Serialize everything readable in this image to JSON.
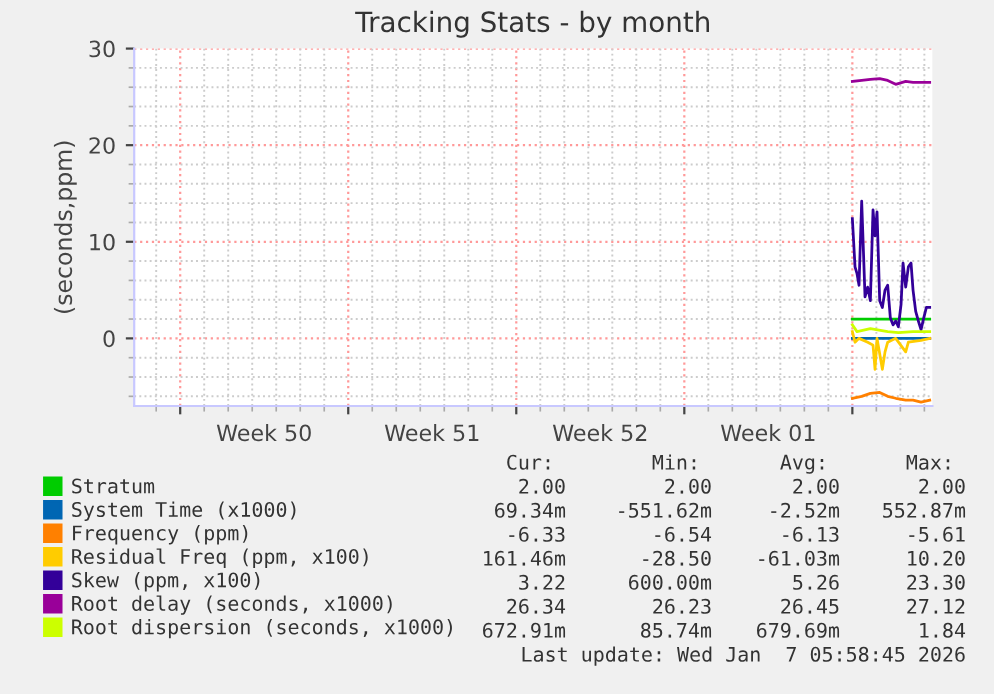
{
  "chart_data": {
    "type": "line",
    "title": "Tracking Stats - by month",
    "ylabel": "(seconds,ppm)",
    "xlim": [
      "2025-12-05T02:00",
      "2026-01-07T08:00"
    ],
    "xticks": [
      {
        "value": "2025-12-07",
        "label": null
      },
      {
        "value": "2025-12-10T12:00",
        "label": "Week 50"
      },
      {
        "value": "2025-12-14",
        "label": null
      },
      {
        "value": "2025-12-17T12:00",
        "label": "Week 51"
      },
      {
        "value": "2025-12-21",
        "label": null
      },
      {
        "value": "2025-12-24T12:00",
        "label": "Week 52"
      },
      {
        "value": "2025-12-28",
        "label": null
      },
      {
        "value": "2025-12-31T12:00",
        "label": "Week 01"
      },
      {
        "value": "2026-01-04",
        "label": null
      }
    ],
    "ylim": [
      -7,
      30
    ],
    "yticks": [
      0,
      10,
      20,
      30
    ],
    "grid": true,
    "legend": "bottom",
    "line_style": "solid",
    "marker": "none",
    "series": [
      {
        "name": "Stratum",
        "color": "#00cc00",
        "x": [
          "2026-01-04T00:00",
          "2026-01-07T05:20"
        ],
        "values": [
          2.0,
          2.0
        ]
      },
      {
        "name": "System Time (x1000)",
        "color": "#0066b3",
        "x": [
          "2026-01-04T00:00",
          "2026-01-07T05:20"
        ],
        "values": [
          0.0,
          0.0
        ]
      },
      {
        "name": "Frequency (ppm)",
        "color": "#ff8000",
        "x": [
          "2026-01-04T00:00",
          "2026-01-04T09:20",
          "2026-01-04T18:00",
          "2026-01-05T03:20",
          "2026-01-05T11:20",
          "2026-01-05T19:20",
          "2026-01-06T05:20",
          "2026-01-06T12:40",
          "2026-01-06T20:40",
          "2026-01-07T05:20"
        ],
        "values": [
          -6.2,
          -6.0,
          -5.7,
          -5.6,
          -6.0,
          -6.2,
          -6.4,
          -6.4,
          -6.6,
          -6.4
        ]
      },
      {
        "name": "Residual Freq (ppm, x100)",
        "color": "#ffcc00",
        "x": [
          "2026-01-04T00:00",
          "2026-01-04T02:40",
          "2026-01-04T06:40",
          "2026-01-04T15:20",
          "2026-01-04T20:40",
          "2026-01-04T22:40",
          "2026-01-05T00:40",
          "2026-01-05T06:00",
          "2026-01-05T08:40",
          "2026-01-05T11:20",
          "2026-01-05T19:20",
          "2026-01-06T05:20",
          "2026-01-06T08:00",
          "2026-01-06T20:40",
          "2026-01-07T05:20"
        ],
        "values": [
          0.7,
          -0.4,
          0.0,
          -0.4,
          -0.7,
          -3.2,
          0.0,
          -3.2,
          -1.4,
          -0.4,
          0.0,
          -1.4,
          -0.4,
          -0.2,
          0.0
        ]
      },
      {
        "name": "Skew (ppm, x100)",
        "color": "#330099",
        "x": [
          "2026-01-04T00:00",
          "2026-01-04T02:40",
          "2026-01-04T04:40",
          "2026-01-04T06:40",
          "2026-01-04T09:20",
          "2026-01-04T12:40",
          "2026-01-04T15:20",
          "2026-01-04T18:00",
          "2026-01-04T20:40",
          "2026-01-04T22:40",
          "2026-01-05T00:40",
          "2026-01-05T03:20",
          "2026-01-05T06:00",
          "2026-01-05T08:40",
          "2026-01-05T11:20",
          "2026-01-05T14:00",
          "2026-01-05T16:40",
          "2026-01-05T19:20",
          "2026-01-05T22:00",
          "2026-01-06T00:40",
          "2026-01-06T02:40",
          "2026-01-06T05:20",
          "2026-01-06T08:00",
          "2026-01-06T10:40",
          "2026-01-06T12:40",
          "2026-01-06T15:20",
          "2026-01-06T18:00",
          "2026-01-06T20:40",
          "2026-01-06T23:20",
          "2026-01-07T02:00",
          "2026-01-07T05:20"
        ],
        "values": [
          12.4,
          7.4,
          6.7,
          5.5,
          14.2,
          4.3,
          5.3,
          3.9,
          13.3,
          10.6,
          13.1,
          3.9,
          3.2,
          5.0,
          5.5,
          2.1,
          1.4,
          1.8,
          1.2,
          3.5,
          7.8,
          5.3,
          7.4,
          7.8,
          5.0,
          2.8,
          1.8,
          0.9,
          2.1,
          3.2,
          3.2
        ]
      },
      {
        "name": "Root delay (seconds, x1000)",
        "color": "#990099",
        "x": [
          "2026-01-04T00:00",
          "2026-01-04T09:20",
          "2026-01-04T18:00",
          "2026-01-05T03:20",
          "2026-01-05T11:20",
          "2026-01-05T19:20",
          "2026-01-06T05:20",
          "2026-01-06T12:40",
          "2026-01-06T20:40",
          "2026-01-07T05:20"
        ],
        "values": [
          26.6,
          26.7,
          26.8,
          26.9,
          26.7,
          26.3,
          26.6,
          26.5,
          26.5,
          26.5
        ]
      },
      {
        "name": "Root dispersion (seconds, x1000)",
        "color": "#ccff00",
        "x": [
          "2026-01-04T00:00",
          "2026-01-04T04:40",
          "2026-01-04T18:00",
          "2026-01-05T11:20",
          "2026-01-05T22:00",
          "2026-01-06T12:40",
          "2026-01-07T05:20"
        ],
        "values": [
          1.4,
          0.7,
          1.0,
          0.7,
          0.6,
          0.7,
          0.7
        ]
      }
    ],
    "annotations": [
      "Cur:",
      "Min:",
      "Avg:",
      "Max:",
      "2.00",
      "2.00",
      "2.00",
      "2.00",
      "69.34m",
      "-551.62m",
      "-2.52m",
      "552.87m",
      "-6.33",
      "-6.54",
      "-6.13",
      "-5.61",
      "161.46m",
      "-28.50",
      "-61.03m",
      "10.20",
      "3.22",
      "600.00m",
      "5.26",
      "23.30",
      "26.34",
      "26.23",
      "26.45",
      "27.12",
      "672.91m",
      "85.74m",
      "679.69m",
      "1.84",
      "Last update: Wed Jan  7 05:58:45 2026"
    ]
  }
}
